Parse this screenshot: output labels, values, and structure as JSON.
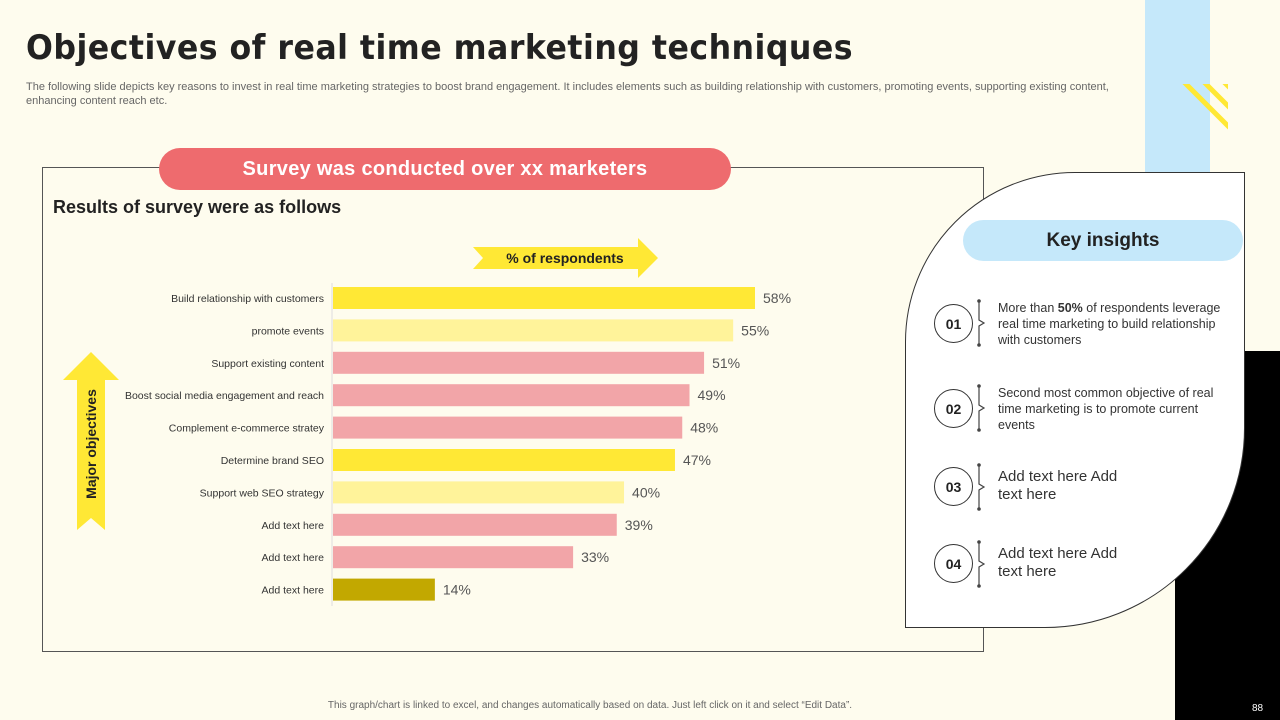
{
  "slide": {
    "title": "Objectives of real time marketing techniques",
    "subtitle": "The following slide depicts key reasons to invest in real time marketing strategies to boost brand engagement. It includes elements such as building relationship with customers, promoting events, supporting existing content, enhancing content reach etc.",
    "survey_banner": "Survey was conducted over xx marketers",
    "results_title": "Results of survey were as follows",
    "footer": "This graph/chart is linked to excel, and changes automatically based on data. Just left click on it and select “Edit Data”.",
    "page_number": "88"
  },
  "insights": {
    "title": "Key insights",
    "items": [
      {
        "num": "01",
        "pre": "More than ",
        "bold": "50%",
        "post": " of respondents leverage  real time marketing to build relationship with customers"
      },
      {
        "num": "02",
        "text": "Second most common objective of real time marketing is to promote current events"
      },
      {
        "num": "03",
        "text": "Add text here Add text here"
      },
      {
        "num": "04",
        "text": "Add text here Add text here"
      }
    ]
  },
  "colors": {
    "accent_red": "#EE6B6E",
    "light_blue": "#C5E8FA",
    "bar_yellow": "#FFE835",
    "bar_light_yellow": "#FFF39A",
    "bar_pink": "#F2A5A8",
    "bar_olive": "#C2A800"
  },
  "chart_data": {
    "type": "bar",
    "orientation": "horizontal",
    "series_label": "% of respondents",
    "axis_label": "Major objectives",
    "categories": [
      "Build relationship with customers",
      "promote events",
      "Support existing content",
      "Boost social media engagement and reach",
      "Complement e-commerce stratey",
      "Determine brand SEO",
      "Support web SEO strategy",
      "Add text here",
      "Add text here",
      "Add text here"
    ],
    "values": [
      58,
      55,
      51,
      49,
      48,
      47,
      40,
      39,
      33,
      14
    ],
    "value_labels": [
      "58%",
      "55%",
      "51%",
      "49%",
      "48%",
      "47%",
      "40%",
      "39%",
      "33%",
      "14%"
    ],
    "bar_colors": [
      "#FFE835",
      "#FFF39A",
      "#F2A5A8",
      "#F2A5A8",
      "#F2A5A8",
      "#FFE835",
      "#FFF39A",
      "#F2A5A8",
      "#F2A5A8",
      "#C2A800"
    ],
    "xlim": [
      0,
      58
    ]
  }
}
